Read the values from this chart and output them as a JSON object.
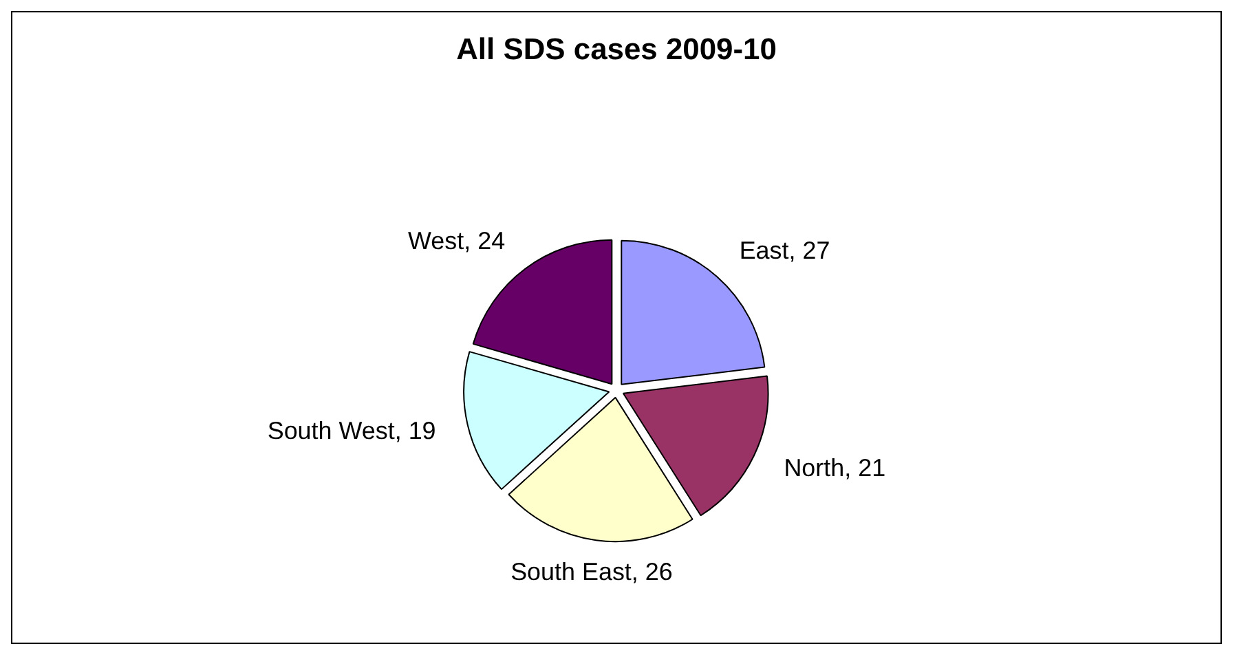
{
  "chart_data": {
    "type": "pie",
    "title": "All SDS cases 2009-10",
    "categories": [
      "East",
      "North",
      "South East",
      "South West",
      "West"
    ],
    "values": [
      27,
      21,
      26,
      19,
      24
    ],
    "colors": [
      "#9999ff",
      "#993366",
      "#ffffcc",
      "#ccffff",
      "#660066"
    ],
    "value_labels": [
      ", 27",
      ", 21",
      ", 26",
      ", 19",
      ", 24"
    ],
    "legend": false
  }
}
